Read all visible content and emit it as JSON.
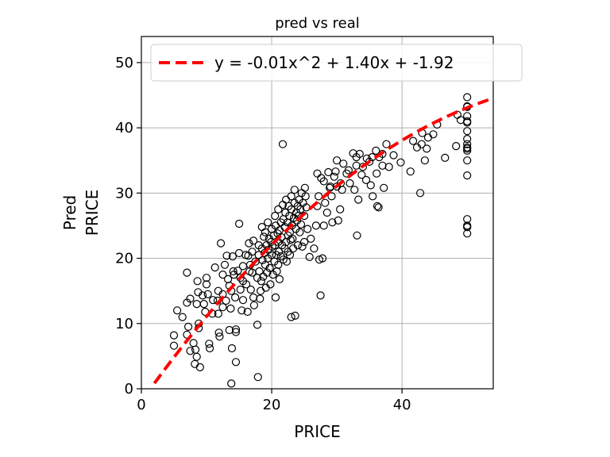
{
  "chart_data": {
    "type": "scatter",
    "title": "pred vs real",
    "xlabel": "PRICE",
    "ylabel": [
      "Pred",
      "PRICE"
    ],
    "xlim": [
      0,
      54
    ],
    "ylim": [
      0,
      54
    ],
    "xticks": [
      0,
      20,
      40
    ],
    "yticks": [
      0,
      10,
      20,
      30,
      40,
      50
    ],
    "grid": true,
    "legend_position": "top",
    "colors": {
      "points": "#000000",
      "fit": "#ff0000",
      "grid": "#b0b0b0"
    },
    "series": [
      {
        "type": "scatter",
        "marker": "open-circle",
        "points": [
          [
            5.0,
            8.2
          ],
          [
            5.0,
            6.6
          ],
          [
            5.5,
            12.0
          ],
          [
            6.3,
            11.0
          ],
          [
            7.0,
            17.8
          ],
          [
            7.0,
            13.2
          ],
          [
            7.2,
            9.5
          ],
          [
            7.0,
            8.3
          ],
          [
            7.5,
            5.8
          ],
          [
            7.5,
            13.8
          ],
          [
            8.0,
            7.0
          ],
          [
            8.2,
            3.8
          ],
          [
            8.3,
            6.0
          ],
          [
            8.5,
            4.9
          ],
          [
            8.5,
            13.0
          ],
          [
            8.6,
            16.5
          ],
          [
            8.7,
            14.8
          ],
          [
            8.8,
            10.0
          ],
          [
            8.8,
            9.3
          ],
          [
            9.0,
            3.3
          ],
          [
            9.4,
            14.3
          ],
          [
            9.6,
            13.0
          ],
          [
            9.8,
            11.8
          ],
          [
            10.0,
            17.0
          ],
          [
            10.0,
            16.0
          ],
          [
            10.2,
            14.5
          ],
          [
            10.4,
            6.9
          ],
          [
            10.5,
            6.2
          ],
          [
            10.9,
            11.5
          ],
          [
            11.0,
            13.6
          ],
          [
            11.3,
            18.6
          ],
          [
            11.7,
            13.5
          ],
          [
            11.8,
            15.0
          ],
          [
            11.8,
            11.5
          ],
          [
            11.9,
            8.6
          ],
          [
            12.0,
            8.0
          ],
          [
            12.2,
            22.3
          ],
          [
            12.5,
            17.5
          ],
          [
            12.5,
            14.5
          ],
          [
            12.5,
            12.5
          ],
          [
            12.8,
            19.0
          ],
          [
            13.0,
            13.5
          ],
          [
            13.1,
            20.4
          ],
          [
            13.3,
            16.8
          ],
          [
            13.5,
            15.8
          ],
          [
            13.5,
            9.0
          ],
          [
            13.7,
            12.3
          ],
          [
            13.8,
            15.0
          ],
          [
            13.8,
            0.8
          ],
          [
            13.9,
            6.2
          ],
          [
            14.0,
            20.3
          ],
          [
            14.1,
            18.0
          ],
          [
            14.2,
            17.5
          ],
          [
            14.4,
            14.0
          ],
          [
            14.5,
            8.7
          ],
          [
            14.5,
            4.1
          ],
          [
            14.5,
            9.1
          ],
          [
            14.8,
            18.1
          ],
          [
            15.0,
            25.3
          ],
          [
            15.0,
            20.8
          ],
          [
            15.2,
            17.0
          ],
          [
            15.2,
            15.2
          ],
          [
            15.4,
            12.0
          ],
          [
            15.6,
            18.8
          ],
          [
            15.6,
            13.6
          ],
          [
            15.6,
            16.5
          ],
          [
            16.0,
            20.5
          ],
          [
            16.1,
            16.0
          ],
          [
            16.3,
            11.8
          ],
          [
            16.4,
            20.4
          ],
          [
            16.5,
            22.3
          ],
          [
            16.6,
            18.0
          ],
          [
            16.7,
            19.0
          ],
          [
            16.8,
            15.2
          ],
          [
            17.0,
            17.8
          ],
          [
            17.0,
            21.0
          ],
          [
            17.2,
            22.7
          ],
          [
            17.2,
            14.0
          ],
          [
            17.3,
            12.8
          ],
          [
            17.5,
            19.5
          ],
          [
            17.8,
            17.0
          ],
          [
            17.8,
            9.8
          ],
          [
            17.9,
            1.8
          ],
          [
            18.0,
            20.5
          ],
          [
            18.0,
            22.0
          ],
          [
            18.1,
            18.0
          ],
          [
            18.2,
            13.8
          ],
          [
            18.3,
            15.0
          ],
          [
            18.4,
            16.5
          ],
          [
            18.5,
            24.8
          ],
          [
            18.5,
            21.5
          ],
          [
            18.6,
            19.7
          ],
          [
            18.7,
            17.2
          ],
          [
            18.8,
            23.3
          ],
          [
            18.9,
            20.8
          ],
          [
            19.0,
            19.0
          ],
          [
            19.0,
            24.0
          ],
          [
            19.1,
            15.5
          ],
          [
            19.2,
            22.0
          ],
          [
            19.3,
            17.8
          ],
          [
            19.4,
            25.5
          ],
          [
            19.4,
            20.0
          ],
          [
            19.5,
            21.3
          ],
          [
            19.6,
            23.0
          ],
          [
            19.7,
            18.5
          ],
          [
            19.8,
            16.0
          ],
          [
            19.9,
            22.5
          ],
          [
            20.0,
            20.5
          ],
          [
            20.0,
            24.5
          ],
          [
            20.1,
            21.8
          ],
          [
            20.2,
            17.5
          ],
          [
            20.3,
            23.5
          ],
          [
            20.4,
            19.5
          ],
          [
            20.5,
            22.0
          ],
          [
            20.5,
            26.5
          ],
          [
            20.6,
            25.0
          ],
          [
            20.6,
            14.0
          ],
          [
            20.7,
            20.5
          ],
          [
            20.8,
            18.0
          ],
          [
            20.9,
            23.8
          ],
          [
            21.0,
            22.5
          ],
          [
            21.0,
            27.5
          ],
          [
            21.0,
            19.0
          ],
          [
            21.1,
            21.0
          ],
          [
            21.2,
            24.3
          ],
          [
            21.2,
            16.8
          ],
          [
            21.4,
            20.3
          ],
          [
            21.4,
            25.5
          ],
          [
            21.5,
            23.2
          ],
          [
            21.6,
            22.0
          ],
          [
            21.7,
            37.5
          ],
          [
            21.7,
            28.2
          ],
          [
            21.8,
            19.8
          ],
          [
            21.8,
            26.0
          ],
          [
            22.0,
            21.5
          ],
          [
            22.0,
            24.8
          ],
          [
            22.1,
            27.0
          ],
          [
            22.2,
            29.0
          ],
          [
            22.2,
            22.5
          ],
          [
            22.3,
            19.5
          ],
          [
            22.4,
            25.5
          ],
          [
            22.5,
            23.5
          ],
          [
            22.5,
            21.0
          ],
          [
            22.6,
            28.0
          ],
          [
            22.7,
            26.5
          ],
          [
            22.8,
            24.0
          ],
          [
            22.8,
            20.5
          ],
          [
            22.9,
            22.8
          ],
          [
            23.0,
            27.5
          ],
          [
            23.0,
            29.5
          ],
          [
            23.0,
            11.0
          ],
          [
            23.1,
            25.0
          ],
          [
            23.2,
            23.0
          ],
          [
            23.3,
            21.5
          ],
          [
            23.4,
            26.2
          ],
          [
            23.5,
            28.5
          ],
          [
            23.5,
            30.5
          ],
          [
            23.6,
            11.2
          ],
          [
            23.7,
            24.5
          ],
          [
            23.8,
            27.0
          ],
          [
            23.9,
            25.8
          ],
          [
            24.0,
            22.0
          ],
          [
            24.0,
            28.0
          ],
          [
            24.1,
            26.5
          ],
          [
            24.2,
            29.0
          ],
          [
            24.3,
            24.0
          ],
          [
            24.4,
            27.5
          ],
          [
            24.5,
            25.2
          ],
          [
            24.6,
            30.0
          ],
          [
            24.7,
            21.8
          ],
          [
            24.8,
            28.5
          ],
          [
            25.0,
            26.5
          ],
          [
            25.0,
            22.5
          ],
          [
            25.1,
            30.8
          ],
          [
            25.2,
            29.5
          ],
          [
            25.3,
            27.8
          ],
          [
            25.5,
            24.5
          ],
          [
            25.8,
            20.2
          ],
          [
            26.0,
            23.0
          ],
          [
            26.5,
            21.5
          ],
          [
            26.8,
            25.0
          ],
          [
            27.0,
            28.0
          ],
          [
            27.0,
            33.0
          ],
          [
            27.2,
            29.5
          ],
          [
            27.3,
            19.8
          ],
          [
            27.5,
            14.3
          ],
          [
            27.6,
            32.3
          ],
          [
            27.8,
            20.0
          ],
          [
            28.0,
            25.0
          ],
          [
            28.0,
            31.8
          ],
          [
            28.2,
            28.5
          ],
          [
            28.5,
            27.0
          ],
          [
            28.7,
            33.2
          ],
          [
            28.9,
            30.8
          ],
          [
            29.0,
            31.0
          ],
          [
            29.2,
            29.5
          ],
          [
            29.3,
            25.5
          ],
          [
            29.6,
            32.5
          ],
          [
            29.8,
            33.3
          ],
          [
            30.0,
            35.0
          ],
          [
            30.0,
            31.0
          ],
          [
            30.2,
            25.8
          ],
          [
            30.5,
            27.5
          ],
          [
            30.6,
            31.5
          ],
          [
            30.8,
            30.5
          ],
          [
            31.0,
            34.5
          ],
          [
            31.5,
            33.0
          ],
          [
            31.8,
            33.5
          ],
          [
            32.0,
            31.5
          ],
          [
            32.5,
            36.1
          ],
          [
            32.7,
            30.5
          ],
          [
            33.0,
            35.5
          ],
          [
            33.0,
            34.2
          ],
          [
            33.1,
            23.5
          ],
          [
            33.3,
            29.0
          ],
          [
            33.5,
            36.0
          ],
          [
            33.8,
            32.8
          ],
          [
            34.0,
            34.0
          ],
          [
            34.5,
            32.0
          ],
          [
            34.6,
            35.3
          ],
          [
            35.0,
            34.8
          ],
          [
            35.2,
            31.2
          ],
          [
            35.4,
            35.5
          ],
          [
            35.5,
            29.5
          ],
          [
            36.0,
            36.5
          ],
          [
            36.1,
            33.0
          ],
          [
            36.2,
            28.0
          ],
          [
            36.4,
            27.8
          ],
          [
            36.5,
            35.5
          ],
          [
            37.0,
            36.0
          ],
          [
            37.0,
            34.2
          ],
          [
            37.2,
            30.8
          ],
          [
            37.6,
            37.5
          ],
          [
            38.0,
            34.0
          ],
          [
            38.7,
            35.8
          ],
          [
            39.8,
            34.7
          ],
          [
            41.3,
            33.3
          ],
          [
            41.7,
            38.0
          ],
          [
            42.3,
            37.0
          ],
          [
            42.8,
            30.0
          ],
          [
            43.0,
            37.5
          ],
          [
            43.1,
            39.2
          ],
          [
            43.5,
            35.0
          ],
          [
            43.8,
            36.8
          ],
          [
            44.0,
            38.5
          ],
          [
            44.8,
            39.0
          ],
          [
            45.4,
            40.5
          ],
          [
            46.6,
            35.4
          ],
          [
            48.3,
            37.2
          ],
          [
            48.5,
            42.0
          ],
          [
            49.0,
            41.2
          ],
          [
            50.0,
            44.7
          ],
          [
            50.0,
            43.3
          ],
          [
            50.0,
            43.2
          ],
          [
            50.0,
            41.8
          ],
          [
            50.0,
            41.0
          ],
          [
            50.0,
            40.8
          ],
          [
            50.0,
            39.5
          ],
          [
            50.0,
            38.3
          ],
          [
            50.0,
            37.5
          ],
          [
            50.0,
            37.0
          ],
          [
            50.0,
            36.5
          ],
          [
            50.0,
            35.0
          ],
          [
            50.0,
            32.7
          ],
          [
            50.0,
            26.0
          ],
          [
            50.0,
            24.8
          ],
          [
            50.0,
            23.8
          ],
          [
            50.0,
            24.8
          ],
          [
            50.0,
            25.0
          ],
          [
            50.0,
            36.8
          ]
        ]
      },
      {
        "type": "line",
        "name": "y = -0.01x^2 + 1.40x + -1.92",
        "dash": "dashed",
        "coefficients": [
          -0.01,
          1.4,
          -1.92
        ],
        "x_range": [
          2,
          54
        ]
      }
    ]
  }
}
